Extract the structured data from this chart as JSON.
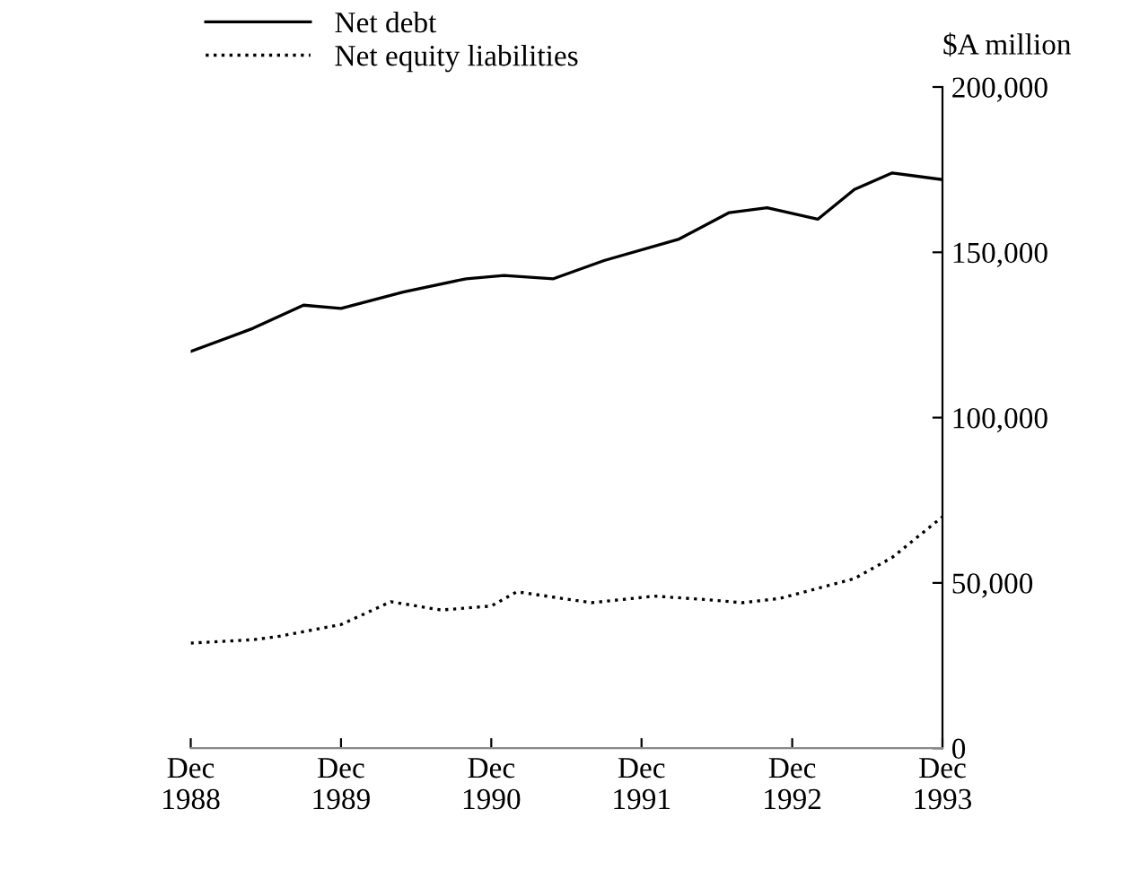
{
  "chart_data": {
    "type": "line",
    "ylabel": "$A million",
    "series": [
      {
        "name": "Net debt",
        "color": "#000000",
        "line_style": "solid",
        "x": [
          "1988-12",
          "1989-05",
          "1989-09",
          "1989-12",
          "1990-05",
          "1990-10",
          "1991-01",
          "1991-05",
          "1991-09",
          "1992-03",
          "1992-07",
          "1992-10",
          "1993-02",
          "1993-05",
          "1993-08",
          "1993-12"
        ],
        "values": [
          120000,
          127000,
          134000,
          133000,
          138000,
          142000,
          143000,
          142000,
          147500,
          154000,
          162000,
          163500,
          160000,
          169000,
          174000,
          172000
        ]
      },
      {
        "name": "Net equity liabilities",
        "color": "#000000",
        "line_style": "dotted",
        "x": [
          "1988-12",
          "1989-05",
          "1989-07",
          "1989-12",
          "1990-04",
          "1990-08",
          "1990-12",
          "1991-02",
          "1991-05",
          "1991-08",
          "1992-01",
          "1992-05",
          "1992-08",
          "1992-11",
          "1993-05",
          "1993-08",
          "1993-12"
        ],
        "values": [
          31800,
          32800,
          33800,
          37400,
          44300,
          41800,
          43000,
          47300,
          45700,
          44000,
          46000,
          45000,
          44000,
          45300,
          51300,
          57700,
          70000
        ]
      }
    ],
    "xlim": [
      "1988-12",
      "1993-12"
    ],
    "xticks": [
      {
        "value": "1988-12",
        "label": "Dec\n1988"
      },
      {
        "value": "1989-12",
        "label": "Dec\n1989"
      },
      {
        "value": "1990-12",
        "label": "Dec\n1990"
      },
      {
        "value": "1991-12",
        "label": "Dec\n1991"
      },
      {
        "value": "1992-12",
        "label": "Dec\n1992"
      },
      {
        "value": "1993-12",
        "label": "Dec\n1993"
      }
    ],
    "ylim": [
      0,
      200000
    ],
    "yticks": [
      {
        "value": 0,
        "label": "0"
      },
      {
        "value": 50000,
        "label": "50,000"
      },
      {
        "value": 100000,
        "label": "100,000"
      },
      {
        "value": 150000,
        "label": "150,000"
      },
      {
        "value": 200000,
        "label": "200,000"
      }
    ],
    "grid": false,
    "legend": "top left"
  }
}
